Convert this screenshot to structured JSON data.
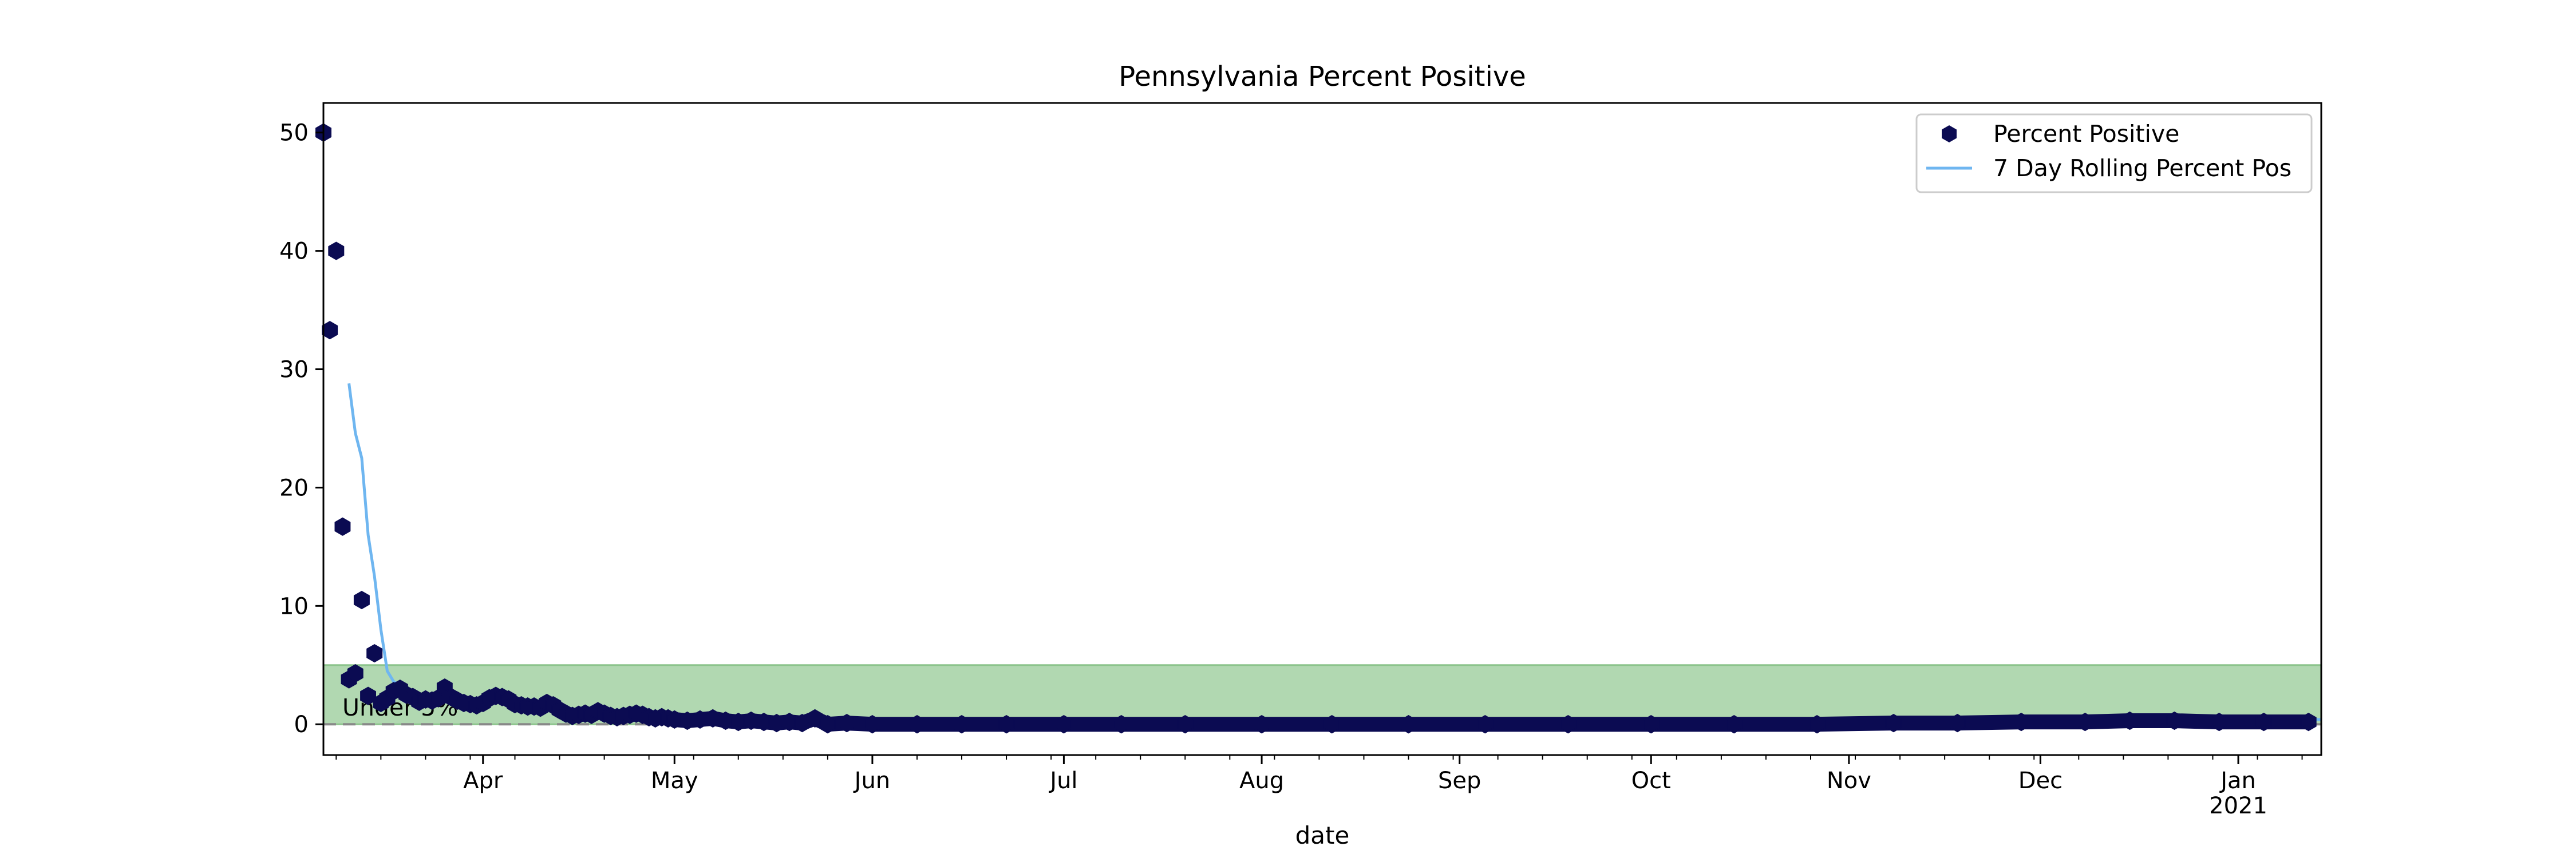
{
  "chart_data": {
    "type": "scatter",
    "title": "Pennsylvania Percent Positive",
    "xlabel": "date",
    "ylabel": "",
    "x_range": [
      "2020-03-07",
      "2021-01-14"
    ],
    "ylim": [
      -2.6,
      52.5
    ],
    "y_ticks": [
      0,
      10,
      20,
      30,
      40,
      50
    ],
    "x_ticks": [
      {
        "date": "2020-04-01",
        "label": "Apr"
      },
      {
        "date": "2020-05-01",
        "label": "May"
      },
      {
        "date": "2020-06-01",
        "label": "Jun"
      },
      {
        "date": "2020-07-01",
        "label": "Jul"
      },
      {
        "date": "2020-08-01",
        "label": "Aug"
      },
      {
        "date": "2020-09-01",
        "label": "Sep"
      },
      {
        "date": "2020-10-01",
        "label": "Oct"
      },
      {
        "date": "2020-11-01",
        "label": "Nov"
      },
      {
        "date": "2020-12-01",
        "label": "Dec"
      },
      {
        "date": "2021-01-01",
        "label": "Jan",
        "sublabel": "2021"
      }
    ],
    "grid": false,
    "legend_position": "upper right",
    "band": {
      "y0": 0,
      "y1": 5,
      "label": "Under 5%",
      "color": "#b1d8b1",
      "edge": "#8cc48c"
    },
    "zero_line_color": "#888888",
    "series": [
      {
        "name": "Percent Positive",
        "kind": "scatter",
        "marker": "hexagon",
        "color": "#0b0b52",
        "points": [
          [
            "2020-03-07",
            50.0
          ],
          [
            "2020-03-08",
            33.3
          ],
          [
            "2020-03-09",
            40.0
          ],
          [
            "2020-03-10",
            16.7
          ],
          [
            "2020-03-11",
            3.8
          ],
          [
            "2020-03-12",
            4.3
          ],
          [
            "2020-03-13",
            10.5
          ],
          [
            "2020-03-14",
            2.4
          ],
          [
            "2020-03-15",
            6.0
          ],
          [
            "2020-03-16",
            1.8
          ],
          [
            "2020-03-17",
            2.2
          ],
          [
            "2020-03-18",
            2.8
          ],
          [
            "2020-03-19",
            3.0
          ],
          [
            "2020-03-20",
            2.5
          ],
          [
            "2020-03-21",
            2.3
          ],
          [
            "2020-03-22",
            1.9
          ],
          [
            "2020-03-23",
            2.1
          ],
          [
            "2020-03-24",
            2.0
          ],
          [
            "2020-03-25",
            2.2
          ],
          [
            "2020-03-26",
            3.1
          ],
          [
            "2020-03-27",
            2.3
          ],
          [
            "2020-03-28",
            2.0
          ],
          [
            "2020-03-29",
            1.8
          ],
          [
            "2020-03-30",
            1.7
          ],
          [
            "2020-03-31",
            1.6
          ],
          [
            "2020-04-01",
            1.8
          ],
          [
            "2020-04-02",
            2.2
          ],
          [
            "2020-04-03",
            2.4
          ],
          [
            "2020-04-04",
            2.3
          ],
          [
            "2020-04-05",
            2.1
          ],
          [
            "2020-04-06",
            1.7
          ],
          [
            "2020-04-07",
            1.6
          ],
          [
            "2020-04-08",
            1.5
          ],
          [
            "2020-04-09",
            1.5
          ],
          [
            "2020-04-10",
            1.4
          ],
          [
            "2020-04-11",
            1.8
          ],
          [
            "2020-04-12",
            1.6
          ],
          [
            "2020-04-13",
            1.2
          ],
          [
            "2020-04-14",
            0.9
          ],
          [
            "2020-04-15",
            0.7
          ],
          [
            "2020-04-16",
            0.8
          ],
          [
            "2020-04-17",
            0.9
          ],
          [
            "2020-04-18",
            0.8
          ],
          [
            "2020-04-19",
            1.1
          ],
          [
            "2020-04-20",
            0.9
          ],
          [
            "2020-04-21",
            0.7
          ],
          [
            "2020-04-22",
            0.6
          ],
          [
            "2020-04-23",
            0.7
          ],
          [
            "2020-04-24",
            0.8
          ],
          [
            "2020-04-25",
            0.9
          ],
          [
            "2020-04-26",
            0.8
          ],
          [
            "2020-04-27",
            0.6
          ],
          [
            "2020-04-28",
            0.5
          ],
          [
            "2020-04-29",
            0.6
          ],
          [
            "2020-04-30",
            0.5
          ],
          [
            "2020-05-01",
            0.4
          ],
          [
            "2020-05-03",
            0.3
          ],
          [
            "2020-05-05",
            0.4
          ],
          [
            "2020-05-07",
            0.5
          ],
          [
            "2020-05-09",
            0.3
          ],
          [
            "2020-05-11",
            0.2
          ],
          [
            "2020-05-13",
            0.3
          ],
          [
            "2020-05-15",
            0.2
          ],
          [
            "2020-05-17",
            0.1
          ],
          [
            "2020-05-19",
            0.2
          ],
          [
            "2020-05-21",
            0.1
          ],
          [
            "2020-05-23",
            0.5
          ],
          [
            "2020-05-25",
            0.0
          ],
          [
            "2020-05-28",
            0.1
          ],
          [
            "2020-06-01",
            0.0
          ],
          [
            "2020-06-08",
            0.0
          ],
          [
            "2020-06-15",
            0.0
          ],
          [
            "2020-06-22",
            0.0
          ],
          [
            "2020-07-01",
            0.0
          ],
          [
            "2020-07-10",
            0.0
          ],
          [
            "2020-07-20",
            0.0
          ],
          [
            "2020-08-01",
            0.0
          ],
          [
            "2020-08-12",
            0.0
          ],
          [
            "2020-08-24",
            0.0
          ],
          [
            "2020-09-05",
            0.0
          ],
          [
            "2020-09-18",
            0.0
          ],
          [
            "2020-10-01",
            0.0
          ],
          [
            "2020-10-14",
            0.0
          ],
          [
            "2020-10-27",
            0.0
          ],
          [
            "2020-11-08",
            0.1
          ],
          [
            "2020-11-18",
            0.1
          ],
          [
            "2020-11-28",
            0.2
          ],
          [
            "2020-12-08",
            0.2
          ],
          [
            "2020-12-15",
            0.3
          ],
          [
            "2020-12-22",
            0.3
          ],
          [
            "2020-12-29",
            0.2
          ],
          [
            "2021-01-05",
            0.2
          ],
          [
            "2021-01-12",
            0.2
          ]
        ]
      },
      {
        "name": "7 Day Rolling Percent Pos",
        "kind": "line",
        "color": "#6fb6f0",
        "points": [
          [
            "2020-03-11",
            28.8
          ],
          [
            "2020-03-12",
            24.6
          ],
          [
            "2020-03-13",
            22.5
          ],
          [
            "2020-03-14",
            16.0
          ],
          [
            "2020-03-15",
            12.5
          ],
          [
            "2020-03-16",
            8.0
          ],
          [
            "2020-03-17",
            4.5
          ],
          [
            "2020-03-18",
            3.6
          ],
          [
            "2020-03-19",
            3.3
          ],
          [
            "2020-03-20",
            3.0
          ],
          [
            "2020-03-21",
            2.6
          ],
          [
            "2020-03-22",
            2.4
          ],
          [
            "2020-03-23",
            2.3
          ],
          [
            "2020-03-25",
            2.2
          ],
          [
            "2020-03-28",
            2.2
          ],
          [
            "2020-04-01",
            2.1
          ],
          [
            "2020-04-05",
            2.0
          ],
          [
            "2020-04-09",
            1.8
          ],
          [
            "2020-04-13",
            1.4
          ],
          [
            "2020-04-17",
            1.1
          ],
          [
            "2020-04-21",
            0.9
          ],
          [
            "2020-04-25",
            0.8
          ],
          [
            "2020-04-30",
            0.7
          ],
          [
            "2020-05-05",
            0.5
          ],
          [
            "2020-05-12",
            0.4
          ],
          [
            "2020-05-20",
            0.3
          ],
          [
            "2020-06-01",
            0.2
          ],
          [
            "2020-07-01",
            0.2
          ],
          [
            "2020-08-01",
            0.2
          ],
          [
            "2020-09-01",
            0.2
          ],
          [
            "2020-10-01",
            0.2
          ],
          [
            "2020-11-01",
            0.2
          ],
          [
            "2020-11-25",
            0.3
          ],
          [
            "2020-12-15",
            0.4
          ],
          [
            "2021-01-01",
            0.4
          ],
          [
            "2021-01-14",
            0.4
          ]
        ]
      }
    ]
  }
}
